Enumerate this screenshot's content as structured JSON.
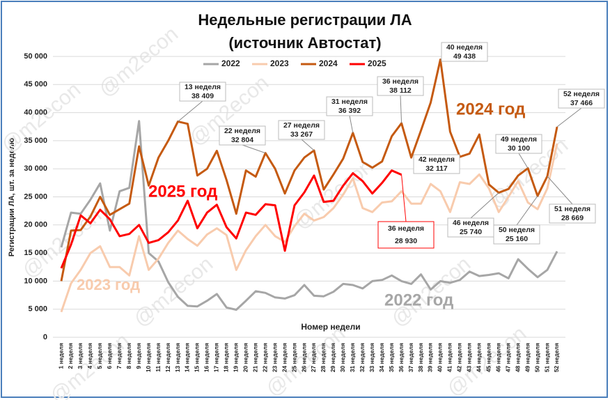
{
  "chart_data": {
    "type": "line",
    "title": [
      "Недельные регистрации ЛА",
      "(источник Автостат)"
    ],
    "y_label": "Регистрации ЛА, шт. за неделю",
    "x_label": "Номер недели",
    "watermark": "@m2econ",
    "categories": [
      "1 неделя",
      "2 неделя",
      "3 неделя",
      "4 неделя",
      "5 неделя",
      "6 неделя",
      "7 неделя",
      "8 неделя",
      "9 неделя",
      "10 неделя",
      "11 неделя",
      "12 неделя",
      "13 неделя",
      "14 неделя",
      "15 неделя",
      "16 неделя",
      "17 неделя",
      "18 неделя",
      "19 неделя",
      "20 неделя",
      "21 неделя",
      "22 неделя",
      "23 неделя",
      "24 неделя",
      "25 неделя",
      "26 неделя",
      "27 неделя",
      "28 неделя",
      "29 неделя",
      "30 неделя",
      "31 неделя",
      "32 неделя",
      "33 неделя",
      "34 неделя",
      "35 неделя",
      "36 неделя",
      "37 неделя",
      "38 неделя",
      "39 неделя",
      "40 неделя",
      "41 неделя",
      "42 неделя",
      "43 неделя",
      "44 неделя",
      "45 неделя",
      "46 неделя",
      "47 неделя",
      "48 неделя",
      "49 неделя",
      "50 неделя",
      "51 неделя",
      "52 неделя"
    ],
    "series": [
      {
        "name": "2022",
        "label": "2022 год",
        "color": "#a6a6a6",
        "values": [
          16000,
          22200,
          22000,
          24500,
          27400,
          19000,
          26000,
          26600,
          38500,
          15000,
          13500,
          9800,
          7200,
          5600,
          5500,
          6500,
          7700,
          5300,
          4900,
          6500,
          8200,
          7900,
          7100,
          6900,
          7500,
          9300,
          7400,
          7300,
          8100,
          9500,
          9300,
          8700,
          10000,
          10200,
          11000,
          10000,
          9500,
          11200,
          8500,
          10000,
          9700,
          10200,
          11700,
          10900,
          11100,
          11400,
          10500,
          13900,
          12200,
          10700,
          12000,
          15300
        ]
      },
      {
        "name": "2023",
        "label": "2023 год",
        "color": "#f8cbad",
        "values": [
          4500,
          9600,
          12000,
          15000,
          16200,
          12500,
          12500,
          11000,
          18000,
          12000,
          14000,
          16800,
          19000,
          17500,
          16300,
          18300,
          19400,
          18200,
          12000,
          15500,
          18000,
          20000,
          18000,
          17000,
          19800,
          22000,
          20800,
          21400,
          23000,
          25400,
          28300,
          23000,
          22300,
          24000,
          24200,
          26000,
          23800,
          23800,
          27300,
          26000,
          22300,
          27600,
          27300,
          29000,
          26500,
          22300,
          25000,
          27800,
          24000,
          22800,
          26500,
          34500
        ]
      },
      {
        "name": "2024",
        "label": "2024 год",
        "color": "#c55a11",
        "values": [
          10000,
          19000,
          19100,
          21500,
          25000,
          21800,
          22800,
          23800,
          34000,
          27000,
          32000,
          35000,
          38409,
          38000,
          28800,
          30000,
          33200,
          28000,
          22000,
          29700,
          28600,
          32804,
          30000,
          25600,
          29700,
          32000,
          33267,
          26300,
          29000,
          31800,
          36392,
          31200,
          30200,
          31300,
          35800,
          38112,
          32000,
          36800,
          41800,
          49438,
          36600,
          32117,
          32700,
          36100,
          27200,
          25740,
          26400,
          28800,
          30100,
          25160,
          28669,
          37466
        ]
      },
      {
        "name": "2025",
        "label": "2025 год",
        "color": "#ff0000",
        "values": [
          12300,
          16500,
          21700,
          20300,
          22700,
          21000,
          18000,
          18400,
          20000,
          16800,
          17300,
          18700,
          20800,
          24300,
          19400,
          22200,
          23600,
          19600,
          17600,
          22200,
          21800,
          23700,
          23500,
          15400,
          23500,
          25800,
          28800,
          24100,
          24300,
          27000,
          29200,
          27800,
          25600,
          27500,
          29700,
          28930,
          null,
          null,
          null,
          null,
          null,
          null,
          null,
          null,
          null,
          null,
          null,
          null,
          null,
          null,
          null,
          null
        ]
      }
    ],
    "annotations": [
      {
        "lines": [
          "13 неделя",
          "38 409"
        ]
      },
      {
        "lines": [
          "22 неделя",
          "32 804"
        ]
      },
      {
        "lines": [
          "27 неделя",
          "33 267"
        ]
      },
      {
        "lines": [
          "31 неделя",
          "36 392"
        ]
      },
      {
        "lines": [
          "36 неделя",
          "38 112"
        ]
      },
      {
        "lines": [
          "40 неделя",
          "49 438"
        ]
      },
      {
        "lines": [
          "42 неделя",
          "32 117"
        ]
      },
      {
        "lines": [
          "52 неделя",
          "37 466"
        ]
      },
      {
        "lines": [
          "49 неделя",
          "30 100"
        ]
      },
      {
        "lines": [
          "46 неделя",
          "25 740"
        ]
      },
      {
        "lines": [
          "50 неделя",
          "25 160"
        ]
      },
      {
        "lines": [
          "51 неделя",
          "28 669"
        ]
      },
      {
        "lines": [
          "36 неделя",
          "28 930"
        ]
      }
    ],
    "ylim": [
      0,
      50000
    ],
    "yticks": [
      0,
      {
        "value": 5000,
        "label": "5 000"
      },
      {
        "value": 10000,
        "label": "10 000"
      },
      {
        "value": 15000,
        "label": "15 000"
      },
      {
        "value": 20000,
        "label": "20 000"
      },
      {
        "value": 25000,
        "label": "25 000"
      },
      {
        "value": 30000,
        "label": "30 000"
      },
      {
        "value": 35000,
        "label": "35 000"
      },
      {
        "value": 40000,
        "label": "40 000"
      },
      {
        "value": 45000,
        "label": "45 000"
      },
      {
        "value": 50000,
        "label": "50 000"
      }
    ],
    "grid": true
  }
}
